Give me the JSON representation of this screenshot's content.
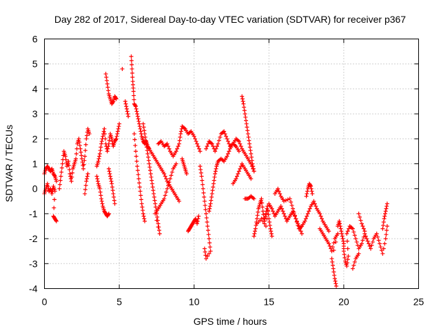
{
  "chart_data": {
    "type": "scatter",
    "title": "Day 282 of 2017, Sidereal Day-to-day VTEC variation (SDTVAR) for receiver p367",
    "xlabel": "GPS time / hours",
    "ylabel": "SDTVAR / TECUs",
    "xlim": [
      0,
      25
    ],
    "ylim": [
      -4,
      6
    ],
    "xticks": [
      "0",
      "5",
      "10",
      "15",
      "20",
      "25"
    ],
    "yticks": [
      "-4",
      "-3",
      "-2",
      "-1",
      "0",
      "1",
      "2",
      "3",
      "4",
      "5",
      "6"
    ],
    "grid": true,
    "marker": "+",
    "series": [
      {
        "name": "SDTVAR",
        "color": "#ff0000",
        "points": [
          [
            0.0,
            0.6
          ],
          [
            0.1,
            0.8
          ],
          [
            0.2,
            0.9
          ],
          [
            0.3,
            0.8
          ],
          [
            0.4,
            0.7
          ],
          [
            0.5,
            0.8
          ],
          [
            0.6,
            0.6
          ],
          [
            0.7,
            0.5
          ],
          [
            0.8,
            0.3
          ],
          [
            0.0,
            -0.2
          ],
          [
            0.1,
            0.0
          ],
          [
            0.2,
            0.2
          ],
          [
            0.3,
            -0.1
          ],
          [
            0.4,
            0.0
          ],
          [
            0.5,
            -0.2
          ],
          [
            0.6,
            0.1
          ],
          [
            0.7,
            -0.1
          ],
          [
            0.6,
            -1.1
          ],
          [
            0.7,
            -1.2
          ],
          [
            0.8,
            -1.3
          ],
          [
            1.0,
            0.0
          ],
          [
            1.1,
            0.5
          ],
          [
            1.2,
            1.0
          ],
          [
            1.3,
            1.5
          ],
          [
            1.4,
            1.3
          ],
          [
            1.5,
            0.9
          ],
          [
            1.6,
            1.1
          ],
          [
            1.7,
            0.6
          ],
          [
            1.8,
            0.3
          ],
          [
            1.9,
            0.8
          ],
          [
            2.0,
            1.0
          ],
          [
            2.1,
            1.2
          ],
          [
            2.2,
            1.8
          ],
          [
            2.3,
            2.0
          ],
          [
            2.4,
            1.6
          ],
          [
            2.5,
            1.2
          ],
          [
            2.6,
            0.8
          ],
          [
            2.7,
            1.3
          ],
          [
            2.8,
            2.0
          ],
          [
            2.9,
            2.4
          ],
          [
            3.0,
            2.2
          ],
          [
            2.7,
            -0.2
          ],
          [
            2.8,
            0.3
          ],
          [
            2.9,
            0.6
          ],
          [
            3.5,
            0.5
          ],
          [
            3.6,
            0.2
          ],
          [
            3.7,
            0.0
          ],
          [
            3.8,
            -0.4
          ],
          [
            3.9,
            -0.7
          ],
          [
            4.0,
            -0.9
          ],
          [
            4.1,
            -1.0
          ],
          [
            4.2,
            -1.1
          ],
          [
            4.3,
            -1.0
          ],
          [
            3.5,
            0.9
          ],
          [
            3.6,
            1.1
          ],
          [
            3.7,
            1.4
          ],
          [
            3.8,
            1.8
          ],
          [
            3.9,
            2.1
          ],
          [
            4.0,
            2.4
          ],
          [
            4.1,
            1.8
          ],
          [
            4.2,
            1.5
          ],
          [
            4.3,
            1.8
          ],
          [
            4.4,
            2.2
          ],
          [
            4.5,
            2.0
          ],
          [
            4.6,
            1.7
          ],
          [
            4.7,
            1.9
          ],
          [
            4.8,
            2.0
          ],
          [
            4.9,
            2.3
          ],
          [
            5.0,
            2.6
          ],
          [
            4.1,
            4.6
          ],
          [
            4.2,
            4.2
          ],
          [
            4.3,
            3.8
          ],
          [
            4.4,
            3.6
          ],
          [
            4.5,
            3.4
          ],
          [
            4.6,
            3.5
          ],
          [
            4.7,
            3.7
          ],
          [
            4.8,
            3.6
          ],
          [
            4.3,
            0.8
          ],
          [
            4.4,
            0.5
          ],
          [
            4.5,
            0.2
          ],
          [
            4.6,
            -0.2
          ],
          [
            4.7,
            -0.6
          ],
          [
            5.2,
            4.8
          ],
          [
            5.4,
            3.5
          ],
          [
            5.5,
            3.2
          ],
          [
            5.6,
            2.9
          ],
          [
            5.8,
            5.3
          ],
          [
            5.85,
            4.8
          ],
          [
            5.9,
            4.3
          ],
          [
            5.95,
            3.9
          ],
          [
            6.0,
            3.4
          ],
          [
            6.1,
            3.3
          ],
          [
            6.2,
            3.0
          ],
          [
            6.3,
            2.7
          ],
          [
            6.4,
            2.4
          ],
          [
            6.5,
            2.1
          ],
          [
            6.6,
            1.9
          ],
          [
            6.7,
            1.8
          ],
          [
            6.8,
            1.9
          ],
          [
            6.9,
            1.7
          ],
          [
            7.0,
            1.6
          ],
          [
            7.2,
            1.4
          ],
          [
            7.4,
            1.2
          ],
          [
            7.6,
            1.0
          ],
          [
            7.8,
            0.8
          ],
          [
            8.0,
            0.6
          ],
          [
            8.2,
            0.3
          ],
          [
            8.4,
            0.1
          ],
          [
            8.6,
            -0.1
          ],
          [
            8.8,
            -0.3
          ],
          [
            9.0,
            -0.5
          ],
          [
            6.0,
            2.2
          ],
          [
            6.1,
            1.5
          ],
          [
            6.2,
            0.9
          ],
          [
            6.3,
            0.4
          ],
          [
            6.4,
            -0.1
          ],
          [
            6.5,
            -0.6
          ],
          [
            6.6,
            -1.0
          ],
          [
            6.7,
            -1.3
          ],
          [
            6.6,
            2.6
          ],
          [
            6.7,
            2.2
          ],
          [
            6.8,
            1.8
          ],
          [
            6.9,
            1.4
          ],
          [
            7.0,
            1.0
          ],
          [
            7.1,
            0.6
          ],
          [
            7.2,
            0.2
          ],
          [
            7.3,
            -0.2
          ],
          [
            7.4,
            -0.6
          ],
          [
            7.5,
            -1.0
          ],
          [
            7.6,
            -1.4
          ],
          [
            7.7,
            -1.8
          ],
          [
            7.4,
            -1.0
          ],
          [
            7.6,
            -0.8
          ],
          [
            7.8,
            -0.6
          ],
          [
            8.0,
            -0.4
          ],
          [
            8.2,
            0.0
          ],
          [
            8.4,
            0.4
          ],
          [
            8.6,
            0.8
          ],
          [
            8.8,
            1.0
          ],
          [
            7.6,
            1.8
          ],
          [
            7.8,
            1.9
          ],
          [
            8.0,
            1.7
          ],
          [
            8.2,
            1.8
          ],
          [
            8.4,
            1.5
          ],
          [
            8.6,
            1.3
          ],
          [
            8.8,
            1.5
          ],
          [
            9.0,
            1.8
          ],
          [
            9.1,
            2.2
          ],
          [
            9.2,
            2.5
          ],
          [
            9.4,
            2.4
          ],
          [
            9.6,
            2.2
          ],
          [
            9.8,
            2.3
          ],
          [
            10.0,
            2.1
          ],
          [
            10.2,
            1.8
          ],
          [
            10.4,
            1.5
          ],
          [
            9.2,
            1.2
          ],
          [
            9.3,
            1.0
          ],
          [
            9.4,
            0.8
          ],
          [
            9.5,
            0.6
          ],
          [
            9.6,
            -1.7
          ],
          [
            9.7,
            -1.6
          ],
          [
            9.8,
            -1.5
          ],
          [
            9.9,
            -1.4
          ],
          [
            10.0,
            -1.3
          ],
          [
            10.1,
            -1.2
          ],
          [
            10.2,
            -1.4
          ],
          [
            10.3,
            -1.1
          ],
          [
            10.4,
            0.9
          ],
          [
            10.5,
            0.5
          ],
          [
            10.6,
            0.0
          ],
          [
            10.7,
            -0.5
          ],
          [
            10.8,
            -1.0
          ],
          [
            10.9,
            -1.5
          ],
          [
            11.0,
            -2.0
          ],
          [
            11.1,
            -2.5
          ],
          [
            10.8,
            -2.8
          ],
          [
            10.7,
            -2.4
          ],
          [
            11.0,
            -0.9
          ],
          [
            11.1,
            -0.6
          ],
          [
            11.2,
            -0.2
          ],
          [
            11.3,
            0.2
          ],
          [
            11.4,
            0.6
          ],
          [
            11.5,
            0.9
          ],
          [
            11.6,
            1.1
          ],
          [
            11.8,
            1.2
          ],
          [
            12.0,
            1.1
          ],
          [
            12.2,
            1.3
          ],
          [
            12.4,
            1.6
          ],
          [
            12.6,
            1.8
          ],
          [
            12.8,
            1.7
          ],
          [
            13.0,
            1.5
          ],
          [
            10.8,
            1.6
          ],
          [
            11.0,
            1.9
          ],
          [
            11.2,
            1.8
          ],
          [
            11.4,
            1.5
          ],
          [
            11.6,
            1.8
          ],
          [
            11.8,
            2.2
          ],
          [
            12.0,
            2.3
          ],
          [
            12.2,
            2.0
          ],
          [
            12.4,
            1.7
          ],
          [
            12.6,
            1.8
          ],
          [
            12.8,
            2.0
          ],
          [
            13.0,
            1.9
          ],
          [
            13.2,
            1.6
          ],
          [
            13.4,
            1.4
          ],
          [
            13.6,
            1.2
          ],
          [
            13.8,
            1.0
          ],
          [
            14.0,
            0.7
          ],
          [
            12.6,
            0.2
          ],
          [
            12.8,
            0.4
          ],
          [
            13.0,
            0.7
          ],
          [
            13.2,
            1.0
          ],
          [
            13.4,
            0.8
          ],
          [
            13.6,
            0.6
          ],
          [
            13.8,
            0.4
          ],
          [
            13.2,
            3.7
          ],
          [
            13.3,
            3.4
          ],
          [
            13.4,
            3.0
          ],
          [
            13.5,
            2.6
          ],
          [
            13.6,
            2.2
          ],
          [
            13.7,
            1.8
          ],
          [
            13.8,
            1.4
          ],
          [
            13.9,
            1.0
          ],
          [
            14.0,
            0.7
          ],
          [
            13.4,
            -0.4
          ],
          [
            13.6,
            -0.4
          ],
          [
            13.8,
            -0.3
          ],
          [
            14.0,
            -0.4
          ],
          [
            14.0,
            -1.9
          ],
          [
            14.1,
            -1.6
          ],
          [
            14.2,
            -1.2
          ],
          [
            14.3,
            -0.8
          ],
          [
            14.4,
            -0.6
          ],
          [
            14.5,
            -0.4
          ],
          [
            14.6,
            -0.9
          ],
          [
            14.7,
            -1.3
          ],
          [
            14.8,
            -1.0
          ],
          [
            14.9,
            -0.7
          ],
          [
            15.0,
            -1.2
          ],
          [
            15.1,
            -1.6
          ],
          [
            15.2,
            -1.9
          ],
          [
            14.2,
            -1.4
          ],
          [
            14.5,
            -1.2
          ],
          [
            14.8,
            -1.5
          ],
          [
            15.0,
            -0.6
          ],
          [
            15.2,
            -0.8
          ],
          [
            15.4,
            -1.1
          ],
          [
            15.6,
            -0.9
          ],
          [
            15.8,
            -0.7
          ],
          [
            16.0,
            -1.0
          ],
          [
            16.2,
            -1.3
          ],
          [
            16.4,
            -1.1
          ],
          [
            16.6,
            -0.9
          ],
          [
            16.8,
            -1.2
          ],
          [
            17.0,
            -1.5
          ],
          [
            17.2,
            -1.8
          ],
          [
            15.4,
            -0.2
          ],
          [
            15.6,
            0.0
          ],
          [
            15.8,
            -0.3
          ],
          [
            16.0,
            -0.5
          ],
          [
            16.4,
            -0.4
          ],
          [
            16.6,
            -0.8
          ],
          [
            16.8,
            -1.2
          ],
          [
            17.0,
            -1.6
          ],
          [
            17.2,
            -1.5
          ],
          [
            17.4,
            -1.3
          ],
          [
            17.6,
            -1.0
          ],
          [
            17.8,
            -0.7
          ],
          [
            18.0,
            -0.5
          ],
          [
            18.2,
            -0.8
          ],
          [
            18.4,
            -1.0
          ],
          [
            18.6,
            -1.3
          ],
          [
            18.8,
            -1.5
          ],
          [
            19.0,
            -1.7
          ],
          [
            17.5,
            -0.3
          ],
          [
            17.6,
            0.0
          ],
          [
            17.7,
            0.2
          ],
          [
            17.8,
            0.1
          ],
          [
            17.9,
            -0.2
          ],
          [
            18.4,
            -1.6
          ],
          [
            18.6,
            -1.8
          ],
          [
            18.8,
            -2.0
          ],
          [
            19.0,
            -2.2
          ],
          [
            19.2,
            -2.5
          ],
          [
            19.4,
            -2.0
          ],
          [
            19.6,
            -1.8
          ],
          [
            19.2,
            -2.8
          ],
          [
            19.3,
            -3.2
          ],
          [
            19.4,
            -3.6
          ],
          [
            19.5,
            -3.9
          ],
          [
            19.6,
            -1.5
          ],
          [
            19.7,
            -1.3
          ],
          [
            19.8,
            -1.6
          ],
          [
            19.9,
            -1.9
          ],
          [
            20.0,
            -2.2
          ],
          [
            20.0,
            -2.5
          ],
          [
            20.1,
            -2.9
          ],
          [
            20.2,
            -3.1
          ],
          [
            20.3,
            -2.7
          ],
          [
            20.2,
            -1.8
          ],
          [
            20.4,
            -1.5
          ],
          [
            20.6,
            -1.6
          ],
          [
            20.8,
            -2.0
          ],
          [
            21.0,
            -2.4
          ],
          [
            21.2,
            -2.2
          ],
          [
            21.4,
            -1.8
          ],
          [
            21.6,
            -2.1
          ],
          [
            21.8,
            -2.4
          ],
          [
            22.0,
            -2.0
          ],
          [
            22.2,
            -1.8
          ],
          [
            22.4,
            -2.2
          ],
          [
            22.6,
            -2.6
          ],
          [
            22.8,
            -2.0
          ],
          [
            22.9,
            -1.5
          ],
          [
            21.0,
            -1.0
          ],
          [
            21.2,
            -1.4
          ],
          [
            21.4,
            -1.7
          ],
          [
            20.6,
            -3.2
          ],
          [
            20.8,
            -2.8
          ],
          [
            21.0,
            -2.6
          ],
          [
            22.6,
            -1.6
          ],
          [
            22.7,
            -1.2
          ],
          [
            22.8,
            -0.9
          ],
          [
            22.9,
            -0.6
          ]
        ]
      }
    ]
  }
}
